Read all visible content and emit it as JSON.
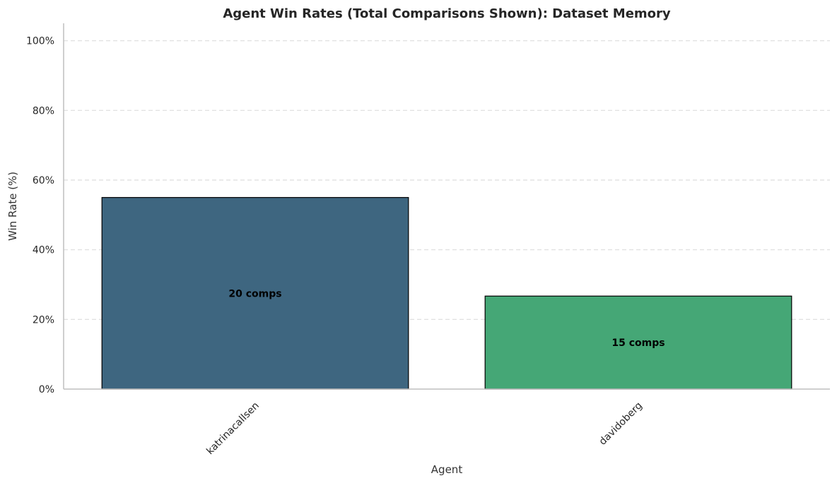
{
  "chart_data": {
    "type": "bar",
    "title": "Agent Win Rates (Total Comparisons Shown): Dataset Memory",
    "xlabel": "Agent",
    "ylabel": "Win Rate (%)",
    "categories": [
      "katrinacallsen",
      "davidoberg"
    ],
    "values": [
      55.0,
      26.7
    ],
    "bar_labels": [
      "20 comps",
      "15 comps"
    ],
    "colors": [
      "#3e6680",
      "#45a776"
    ],
    "ylim": [
      0,
      105
    ],
    "yticks": [
      0,
      20,
      40,
      60,
      80,
      100
    ],
    "ytick_labels": [
      "0%",
      "20%",
      "40%",
      "60%",
      "80%",
      "100%"
    ],
    "grid": "y-dashed"
  }
}
